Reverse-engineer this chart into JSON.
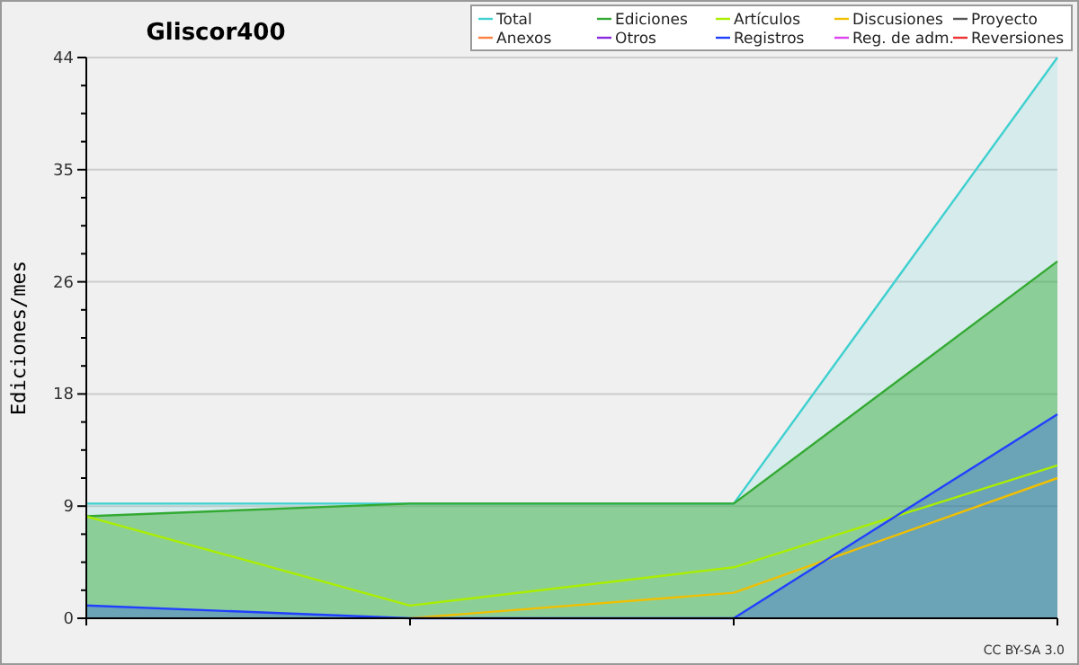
{
  "chart_data": {
    "type": "line",
    "title": "Gliscor400",
    "ylabel": "Ediciones/mes",
    "annotations": [
      "CC BY-SA 3.0"
    ],
    "categories": [
      null,
      null,
      null,
      null
    ],
    "ylim": [
      0,
      44
    ],
    "yticks": [
      0,
      {
        "value": 2.2,
        "label": null
      },
      {
        "value": 4.4,
        "label": null
      },
      {
        "value": 6.6,
        "label": null
      },
      {
        "value": 8.8,
        "label": "9"
      },
      {
        "value": 11,
        "label": null
      },
      {
        "value": 13.2,
        "label": null
      },
      {
        "value": 15.4,
        "label": null
      },
      {
        "value": 17.6,
        "label": "18"
      },
      {
        "value": 19.8,
        "label": null
      },
      {
        "value": 22,
        "label": null
      },
      {
        "value": 24.2,
        "label": null
      },
      {
        "value": 26.4,
        "label": "26"
      },
      {
        "value": 28.6,
        "label": null
      },
      {
        "value": 30.8,
        "label": null
      },
      {
        "value": 33,
        "label": null
      },
      {
        "value": 35.2,
        "label": "35"
      },
      {
        "value": 37.4,
        "label": null
      },
      {
        "value": 39.6,
        "label": null
      },
      {
        "value": 41.8,
        "label": null
      },
      44
    ],
    "grid": "y",
    "legend": "top right",
    "series": [
      {
        "name": "Total",
        "type": "area",
        "color": "#40d0d0",
        "values": [
          9,
          9,
          9,
          44
        ]
      },
      {
        "name": "Ediciones",
        "type": "area",
        "color": "#33aa33",
        "values": [
          8,
          9,
          9,
          28
        ]
      },
      {
        "name": "Artículos",
        "color": "#aaee00",
        "values": [
          8,
          1,
          4,
          12
        ]
      },
      {
        "name": "Discusiones",
        "color": "#f0c000",
        "values": [
          null,
          0,
          2,
          11
        ]
      },
      {
        "name": "Proyecto",
        "color": "#555555",
        "values": [
          null,
          null,
          null,
          null
        ]
      },
      {
        "name": "Anexos",
        "color": "#ff8040",
        "values": [
          null,
          null,
          null,
          null
        ]
      },
      {
        "name": "Otros",
        "color": "#8a2be2",
        "values": [
          null,
          null,
          null,
          null
        ]
      },
      {
        "name": "Registros",
        "type": "area",
        "color": "#2040ff",
        "values": [
          1,
          0,
          0,
          16
        ]
      },
      {
        "name": "Reg. de adm.",
        "color": "#dd44ee",
        "values": [
          null,
          null,
          null,
          null
        ]
      },
      {
        "name": "Reversiones",
        "color": "#ee3333",
        "values": [
          null,
          null,
          null,
          null
        ]
      }
    ]
  }
}
